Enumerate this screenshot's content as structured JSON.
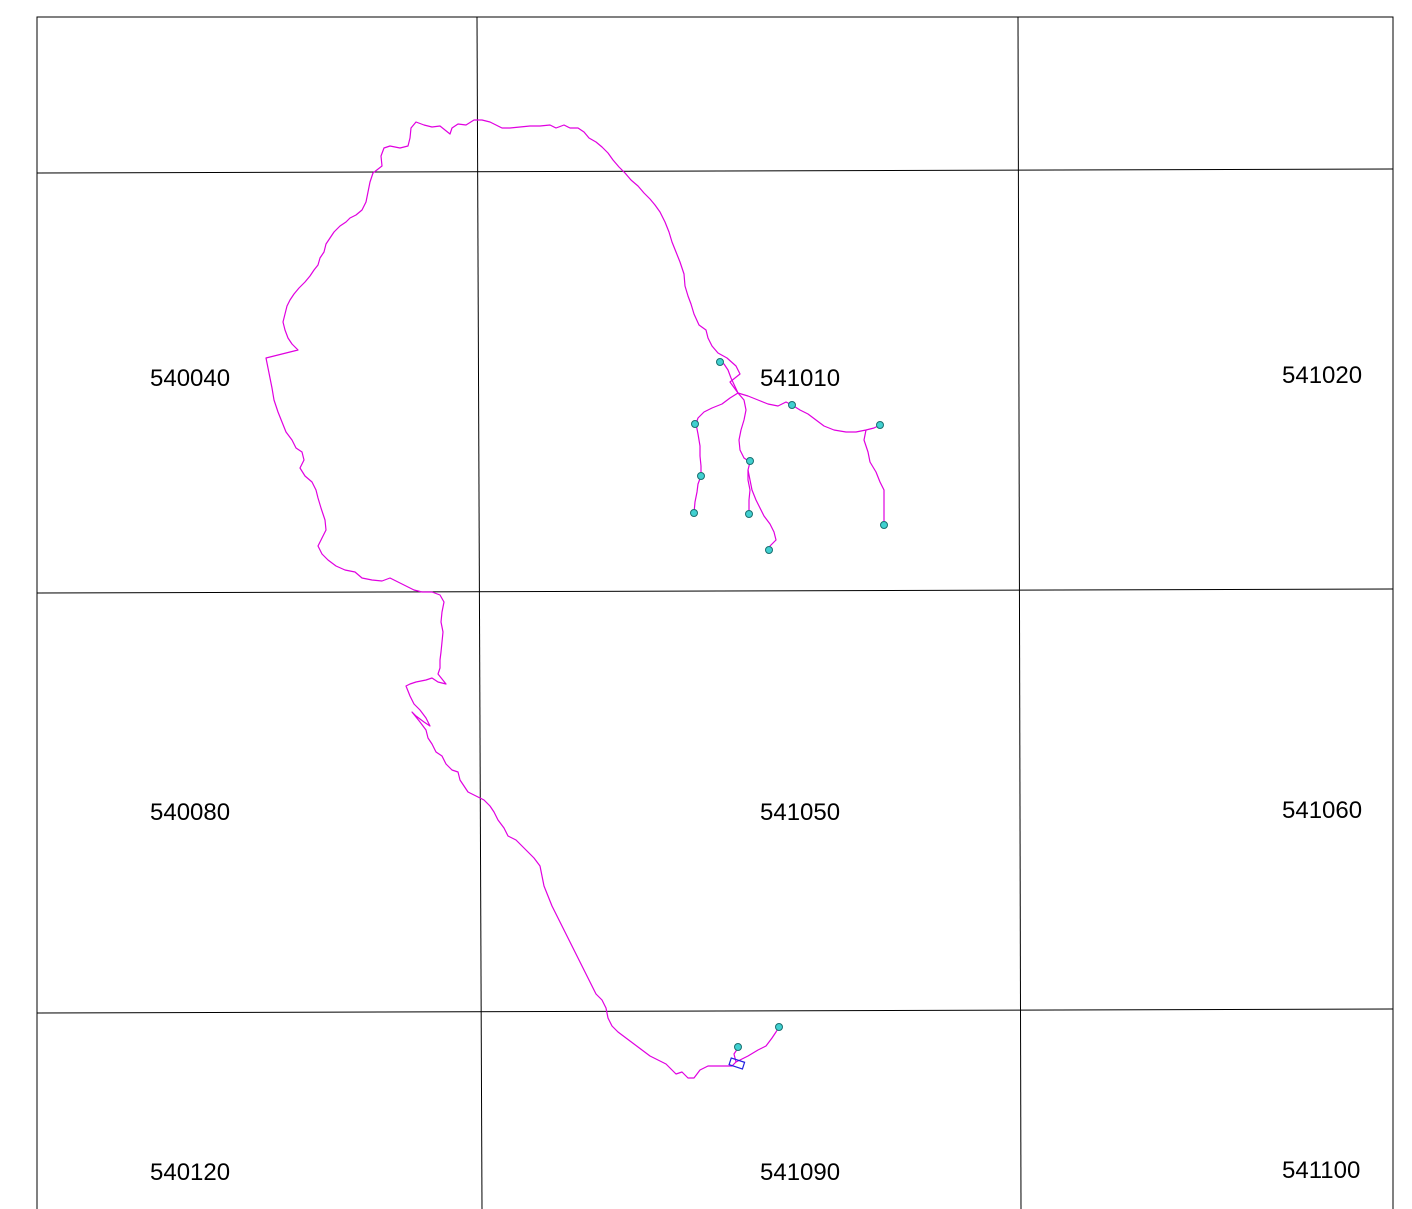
{
  "map": {
    "colors": {
      "grid": "#000000",
      "route": "#e000e0",
      "point_fill": "#40d0d0",
      "point_stroke": "#1a7070",
      "structure": "#2020e0"
    },
    "sheets": [
      {
        "id": "sheet-540040",
        "label": "540040"
      },
      {
        "id": "sheet-541010",
        "label": "541010"
      },
      {
        "id": "sheet-541020",
        "label": "541020"
      },
      {
        "id": "sheet-540080",
        "label": "540080"
      },
      {
        "id": "sheet-541050",
        "label": "541050"
      },
      {
        "id": "sheet-541060",
        "label": "541060"
      },
      {
        "id": "sheet-540120",
        "label": "540120"
      },
      {
        "id": "sheet-541090",
        "label": "541090"
      },
      {
        "id": "sheet-541100",
        "label": "541100"
      }
    ],
    "features": {
      "route_line": "magenta-line",
      "survey_points": "cyan-circle-marker",
      "structure_marker": "blue-rectangle-marker"
    }
  }
}
